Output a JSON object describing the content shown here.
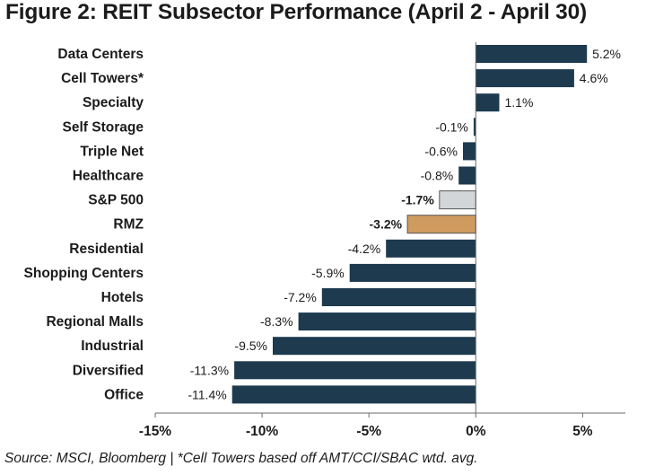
{
  "chart_data": {
    "type": "bar",
    "orientation": "horizontal",
    "title": "Figure 2: REIT Subsector Performance (April 2 - April 30)",
    "categories": [
      "Data Centers",
      "Cell Towers*",
      "Specialty",
      "Self Storage",
      "Triple Net",
      "Healthcare",
      "S&P 500",
      "RMZ",
      "Residential",
      "Shopping Centers",
      "Hotels",
      "Regional Malls",
      "Industrial",
      "Diversified",
      "Office"
    ],
    "values": [
      5.2,
      4.6,
      1.1,
      -0.1,
      -0.6,
      -0.8,
      -1.7,
      -3.2,
      -4.2,
      -5.9,
      -7.2,
      -8.3,
      -9.5,
      -11.3,
      -11.4
    ],
    "value_labels": [
      "5.2%",
      "4.6%",
      "1.1%",
      "-0.1%",
      "-0.6%",
      "-0.8%",
      "-1.7%",
      "-3.2%",
      "-4.2%",
      "-5.9%",
      "-7.2%",
      "-8.3%",
      "-9.5%",
      "-11.3%",
      "-11.4%"
    ],
    "bold_labels": [
      false,
      false,
      false,
      false,
      false,
      false,
      true,
      true,
      false,
      false,
      false,
      false,
      false,
      false,
      false
    ],
    "bar_colors": [
      "#1d3a4e",
      "#1d3a4e",
      "#1d3a4e",
      "#1d3a4e",
      "#1d3a4e",
      "#1d3a4e",
      "#d3d6d9",
      "#cf9b5e",
      "#1d3a4e",
      "#1d3a4e",
      "#1d3a4e",
      "#1d3a4e",
      "#1d3a4e",
      "#1d3a4e",
      "#1d3a4e"
    ],
    "xlim": [
      -15,
      7
    ],
    "xticks": [
      -15,
      -10,
      -5,
      0,
      5
    ],
    "xtick_labels": [
      "-15%",
      "-10%",
      "-5%",
      "0%",
      "5%"
    ],
    "xlabel": "",
    "ylabel": "",
    "grid": false,
    "legend": "none"
  },
  "footnote": "Source: MSCI, Bloomberg | *Cell Towers based off AMT/CCI/SBAC wtd. avg."
}
